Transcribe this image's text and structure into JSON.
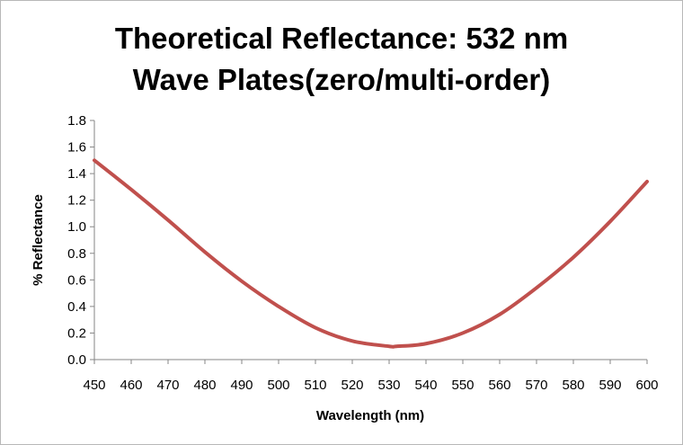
{
  "chart_data": {
    "type": "line",
    "title_line1": "Theoretical Reflectance: 532 nm",
    "title_line2": "Wave Plates(zero/multi-order)",
    "xlabel": "Wavelength (nm)",
    "ylabel": "% Reflectance",
    "xlim": [
      450,
      600
    ],
    "ylim": [
      0,
      1.8
    ],
    "x_ticks": [
      450,
      460,
      470,
      480,
      490,
      500,
      510,
      520,
      530,
      540,
      550,
      560,
      570,
      580,
      590,
      600
    ],
    "y_ticks": [
      0.0,
      0.2,
      0.4,
      0.6,
      0.8,
      1.0,
      1.2,
      1.4,
      1.6,
      1.8
    ],
    "grid": false,
    "legend": "none",
    "series": [
      {
        "color": "#c0504d",
        "x": [
          450,
          460,
          470,
          480,
          490,
          500,
          510,
          520,
          530,
          532,
          540,
          550,
          560,
          570,
          580,
          590,
          600
        ],
        "y": [
          1.5,
          1.28,
          1.05,
          0.81,
          0.59,
          0.4,
          0.24,
          0.14,
          0.1,
          0.1,
          0.12,
          0.2,
          0.34,
          0.54,
          0.77,
          1.04,
          1.34
        ]
      }
    ]
  }
}
